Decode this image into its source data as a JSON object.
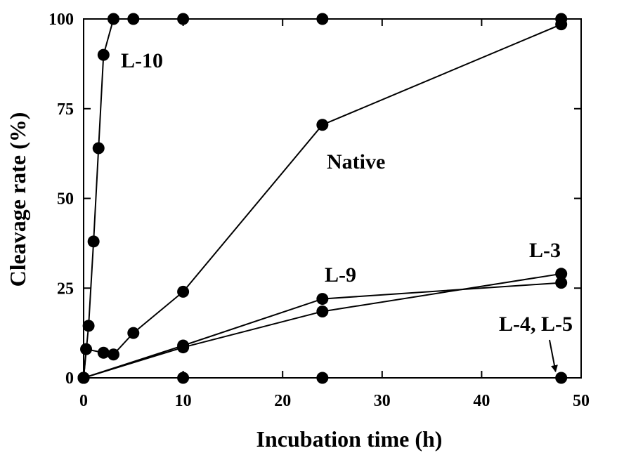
{
  "chart_data": {
    "type": "line",
    "title": "",
    "xlabel": "Incubation time (h)",
    "ylabel": "Cleavage rate  (%)",
    "xlim": [
      0,
      50
    ],
    "ylim": [
      0,
      100
    ],
    "x_ticks": [
      0,
      10,
      20,
      30,
      40,
      50
    ],
    "y_ticks": [
      0,
      25,
      50,
      75,
      100
    ],
    "grid": false,
    "legend": "none",
    "marker": "filled-circle",
    "color": "#000000",
    "series": [
      {
        "name": "L-10",
        "x": [
          0,
          0.5,
          1,
          1.5,
          2,
          3,
          5,
          10,
          24,
          48
        ],
        "y": [
          0,
          14.5,
          38,
          64,
          90,
          100,
          100,
          100,
          100,
          100
        ]
      },
      {
        "name": "Native",
        "x": [
          0,
          0.25,
          2,
          3,
          5,
          10,
          24,
          48
        ],
        "y": [
          0,
          8,
          7,
          6.5,
          12.5,
          24,
          70.5,
          98.5
        ]
      },
      {
        "name": "L-9",
        "x": [
          0,
          10,
          24,
          48
        ],
        "y": [
          0,
          9,
          22,
          26.5
        ]
      },
      {
        "name": "L-3",
        "x": [
          0,
          10,
          24,
          48
        ],
        "y": [
          0,
          8.5,
          18.5,
          29
        ]
      },
      {
        "name": "L-4, L-5",
        "x": [
          0,
          10,
          24,
          48
        ],
        "y": [
          0,
          0,
          0,
          0
        ]
      }
    ],
    "annotations": [
      {
        "text": "L-10",
        "series": "L-10"
      },
      {
        "text": "Native",
        "series": "Native"
      },
      {
        "text": "L-9",
        "series": "L-9"
      },
      {
        "text": "L-3",
        "series": "L-3"
      },
      {
        "text": "L-4, L-5",
        "series": "L-4, L-5",
        "arrow": true
      }
    ]
  }
}
